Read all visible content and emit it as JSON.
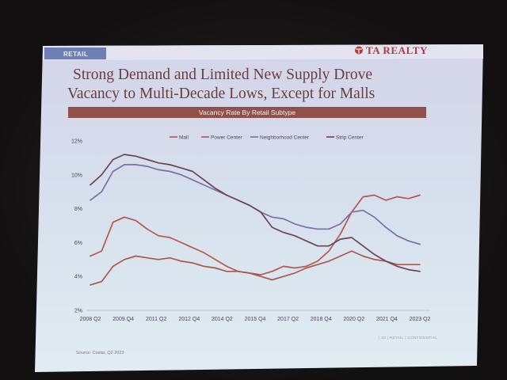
{
  "slide": {
    "section_tab": "RETAIL",
    "logo": "TA REALTY",
    "title_lines": [
      "Strong Demand and Limited New Supply Drove",
      "Vacancy to Multi-Decade Lows, Except for Malls"
    ],
    "source": "Source: Costar, Q2 2023",
    "footer": "| 18 | RETAIL | CONFIDENTIAL"
  },
  "colors": {
    "accent": "#8f5149",
    "tab": "#6e7fb3",
    "slide_top": "#d4d4e8",
    "slide_bottom": "#e1ecf2"
  },
  "chart_data": {
    "type": "line",
    "title": "Vacancy Rate By Retail Subtype",
    "ylim": [
      2,
      12
    ],
    "y_ticks": [
      "12%",
      "10%",
      "8%",
      "6%",
      "4%",
      "2%"
    ],
    "x_tick_labels": [
      "2008 Q2",
      "2009 Q4",
      "2011 Q2",
      "2012 Q4",
      "2014 Q2",
      "2015 Q4",
      "2017 Q2",
      "2018 Q4",
      "2020 Q2",
      "2021 Q4",
      "2023 Q2"
    ],
    "grid": false,
    "legend_position": "top",
    "series": [
      {
        "name": "Mall",
        "color": "#b8574b",
        "values": [
          5.2,
          5.5,
          7.2,
          7.5,
          7.3,
          6.8,
          6.4,
          6.3,
          6.0,
          5.7,
          5.4,
          5.0,
          4.6,
          4.3,
          4.2,
          4.1,
          4.3,
          4.6,
          4.5,
          4.6,
          4.9,
          5.5,
          6.5,
          7.8,
          8.7,
          8.8,
          8.5,
          8.7,
          8.6,
          8.8
        ]
      },
      {
        "name": "Power Center",
        "color": "#a85a4c",
        "values": [
          3.5,
          3.7,
          4.6,
          5.0,
          5.2,
          5.1,
          5.0,
          5.1,
          4.9,
          4.8,
          4.6,
          4.5,
          4.3,
          4.3,
          4.2,
          4.0,
          3.8,
          4.0,
          4.2,
          4.5,
          4.7,
          4.9,
          5.2,
          5.5,
          5.2,
          5.0,
          4.9,
          4.7,
          4.7,
          4.7
        ]
      },
      {
        "name": "Neighborhood Center",
        "color": "#7a6fa8",
        "values": [
          8.5,
          9.0,
          10.2,
          10.6,
          10.6,
          10.5,
          10.3,
          10.2,
          10.0,
          9.7,
          9.4,
          9.1,
          8.8,
          8.5,
          8.2,
          7.8,
          7.5,
          7.4,
          7.1,
          6.9,
          6.8,
          6.8,
          7.1,
          7.8,
          7.9,
          7.5,
          6.9,
          6.4,
          6.1,
          5.9
        ]
      },
      {
        "name": "Strip Center",
        "color": "#6b4457",
        "values": [
          9.4,
          10.0,
          10.9,
          11.2,
          11.1,
          10.9,
          10.7,
          10.6,
          10.4,
          10.2,
          9.7,
          9.2,
          8.8,
          8.5,
          8.2,
          7.8,
          6.9,
          6.6,
          6.4,
          6.1,
          5.8,
          5.8,
          6.2,
          6.3,
          5.8,
          5.3,
          4.9,
          4.6,
          4.4,
          4.3
        ]
      }
    ]
  }
}
